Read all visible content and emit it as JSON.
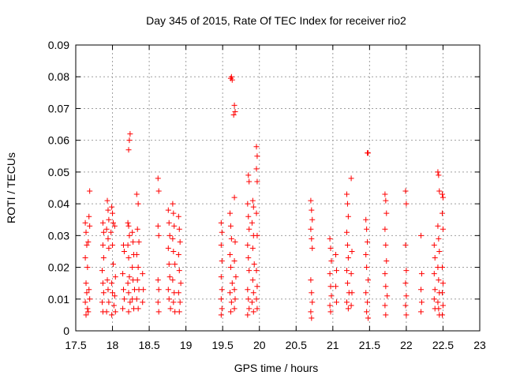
{
  "chart_data": {
    "type": "scatter",
    "title": "Day 345 of 2015, Rate Of TEC Index for receiver rio2",
    "xlabel": "GPS time / hours",
    "ylabel": "ROTI / TECUs",
    "xlim": [
      17.5,
      23
    ],
    "ylim": [
      0,
      0.09
    ],
    "x_ticks": [
      17.5,
      18,
      18.5,
      19,
      19.5,
      20,
      20.5,
      21,
      21.5,
      22,
      22.5,
      23
    ],
    "x_tick_labels": [
      "17.5",
      "18",
      "18.5",
      "19",
      "19.5",
      "20",
      "20.5",
      "21",
      "21.5",
      "22",
      "22.5",
      "23"
    ],
    "y_ticks": [
      0,
      0.01,
      0.02,
      0.03,
      0.04,
      0.05,
      0.06,
      0.07,
      0.08,
      0.09
    ],
    "y_tick_labels": [
      "0",
      "0.01",
      "0.02",
      "0.03",
      "0.04",
      "0.05",
      "0.06",
      "0.07",
      "0.08",
      "0.09"
    ],
    "grid": true,
    "marker": "+",
    "marker_color": "#ff0000",
    "series": [
      {
        "name": "ROTI",
        "points": [
          [
            17.63,
            0.034
          ],
          [
            17.64,
            0.031
          ],
          [
            17.65,
            0.027
          ],
          [
            17.63,
            0.023
          ],
          [
            17.66,
            0.02
          ],
          [
            17.64,
            0.015
          ],
          [
            17.65,
            0.012
          ],
          [
            17.63,
            0.009
          ],
          [
            17.66,
            0.007
          ],
          [
            17.64,
            0.005
          ],
          [
            17.69,
            0.044
          ],
          [
            17.68,
            0.036
          ],
          [
            17.69,
            0.033
          ],
          [
            17.67,
            0.028
          ],
          [
            17.68,
            0.013
          ],
          [
            17.69,
            0.01
          ],
          [
            17.67,
            0.006
          ],
          [
            17.87,
            0.034
          ],
          [
            17.88,
            0.031
          ],
          [
            17.87,
            0.027
          ],
          [
            17.88,
            0.023
          ],
          [
            17.86,
            0.019
          ],
          [
            17.87,
            0.015
          ],
          [
            17.88,
            0.012
          ],
          [
            17.86,
            0.009
          ],
          [
            17.87,
            0.006
          ],
          [
            17.93,
            0.041
          ],
          [
            17.94,
            0.038
          ],
          [
            17.95,
            0.035
          ],
          [
            17.92,
            0.032
          ],
          [
            17.94,
            0.029
          ],
          [
            17.95,
            0.026
          ],
          [
            17.93,
            0.016
          ],
          [
            17.94,
            0.013
          ],
          [
            17.95,
            0.009
          ],
          [
            17.92,
            0.006
          ],
          [
            17.99,
            0.039
          ],
          [
            18.0,
            0.037
          ],
          [
            18.01,
            0.034
          ],
          [
            17.98,
            0.031
          ],
          [
            18.0,
            0.027
          ],
          [
            18.01,
            0.021
          ],
          [
            17.99,
            0.015
          ],
          [
            18.0,
            0.012
          ],
          [
            18.02,
            0.008
          ],
          [
            17.99,
            0.005
          ],
          [
            18.03,
            0.033
          ],
          [
            18.04,
            0.017
          ],
          [
            18.03,
            0.011
          ],
          [
            18.04,
            0.006
          ],
          [
            18.15,
            0.027
          ],
          [
            18.16,
            0.025
          ],
          [
            18.14,
            0.018
          ],
          [
            18.15,
            0.013
          ],
          [
            18.16,
            0.01
          ],
          [
            18.14,
            0.007
          ],
          [
            18.23,
            0.06
          ],
          [
            18.24,
            0.062
          ],
          [
            18.22,
            0.057
          ],
          [
            18.21,
            0.034
          ],
          [
            18.22,
            0.033
          ],
          [
            18.23,
            0.03
          ],
          [
            18.21,
            0.027
          ],
          [
            18.22,
            0.023
          ],
          [
            18.23,
            0.017
          ],
          [
            18.21,
            0.015
          ],
          [
            18.22,
            0.012
          ],
          [
            18.24,
            0.009
          ],
          [
            18.22,
            0.006
          ],
          [
            18.27,
            0.031
          ],
          [
            18.28,
            0.028
          ],
          [
            18.29,
            0.024
          ],
          [
            18.27,
            0.02
          ],
          [
            18.28,
            0.016
          ],
          [
            18.3,
            0.013
          ],
          [
            18.27,
            0.01
          ],
          [
            18.29,
            0.007
          ],
          [
            18.33,
            0.043
          ],
          [
            18.35,
            0.04
          ],
          [
            18.34,
            0.032
          ],
          [
            18.36,
            0.028
          ],
          [
            18.33,
            0.024
          ],
          [
            18.35,
            0.02
          ],
          [
            18.34,
            0.016
          ],
          [
            18.36,
            0.013
          ],
          [
            18.33,
            0.01
          ],
          [
            18.35,
            0.007
          ],
          [
            18.41,
            0.018
          ],
          [
            18.42,
            0.013
          ],
          [
            18.41,
            0.009
          ],
          [
            18.62,
            0.048
          ],
          [
            18.63,
            0.044
          ],
          [
            18.62,
            0.033
          ],
          [
            18.63,
            0.03
          ],
          [
            18.62,
            0.016
          ],
          [
            18.63,
            0.013
          ],
          [
            18.62,
            0.009
          ],
          [
            18.63,
            0.006
          ],
          [
            18.76,
            0.038
          ],
          [
            18.77,
            0.034
          ],
          [
            18.78,
            0.03
          ],
          [
            18.76,
            0.026
          ],
          [
            18.77,
            0.021
          ],
          [
            18.78,
            0.017
          ],
          [
            18.76,
            0.013
          ],
          [
            18.77,
            0.01
          ],
          [
            18.79,
            0.007
          ],
          [
            18.82,
            0.04
          ],
          [
            18.83,
            0.037
          ],
          [
            18.84,
            0.033
          ],
          [
            18.82,
            0.029
          ],
          [
            18.83,
            0.025
          ],
          [
            18.85,
            0.021
          ],
          [
            18.82,
            0.016
          ],
          [
            18.84,
            0.012
          ],
          [
            18.83,
            0.009
          ],
          [
            18.85,
            0.006
          ],
          [
            18.9,
            0.036
          ],
          [
            18.91,
            0.032
          ],
          [
            18.92,
            0.028
          ],
          [
            18.9,
            0.024
          ],
          [
            18.91,
            0.019
          ],
          [
            18.93,
            0.015
          ],
          [
            18.9,
            0.012
          ],
          [
            18.92,
            0.009
          ],
          [
            18.91,
            0.006
          ],
          [
            19.48,
            0.034
          ],
          [
            19.49,
            0.031
          ],
          [
            19.48,
            0.027
          ],
          [
            19.49,
            0.022
          ],
          [
            19.48,
            0.017
          ],
          [
            19.49,
            0.013
          ],
          [
            19.48,
            0.01
          ],
          [
            19.49,
            0.007
          ],
          [
            19.48,
            0.005
          ],
          [
            19.62,
            0.08
          ],
          [
            19.63,
            0.079
          ],
          [
            19.61,
            0.0795
          ],
          [
            19.66,
            0.071
          ],
          [
            19.67,
            0.069
          ],
          [
            19.65,
            0.068
          ],
          [
            19.6,
            0.037
          ],
          [
            19.61,
            0.033
          ],
          [
            19.62,
            0.029
          ],
          [
            19.6,
            0.024
          ],
          [
            19.61,
            0.02
          ],
          [
            19.63,
            0.015
          ],
          [
            19.6,
            0.012
          ],
          [
            19.62,
            0.009
          ],
          [
            19.61,
            0.006
          ],
          [
            19.66,
            0.042
          ],
          [
            19.67,
            0.028
          ],
          [
            19.66,
            0.022
          ],
          [
            19.68,
            0.017
          ],
          [
            19.66,
            0.013
          ],
          [
            19.67,
            0.01
          ],
          [
            19.66,
            0.007
          ],
          [
            19.85,
            0.049
          ],
          [
            19.86,
            0.047
          ],
          [
            19.84,
            0.04
          ],
          [
            19.85,
            0.036
          ],
          [
            19.86,
            0.032
          ],
          [
            19.84,
            0.027
          ],
          [
            19.85,
            0.023
          ],
          [
            19.86,
            0.019
          ],
          [
            19.84,
            0.013
          ],
          [
            19.85,
            0.01
          ],
          [
            19.86,
            0.007
          ],
          [
            19.84,
            0.005
          ],
          [
            19.91,
            0.041
          ],
          [
            19.92,
            0.039
          ],
          [
            19.9,
            0.034
          ],
          [
            19.92,
            0.03
          ],
          [
            19.91,
            0.026
          ],
          [
            19.93,
            0.021
          ],
          [
            19.91,
            0.016
          ],
          [
            19.92,
            0.012
          ],
          [
            19.9,
            0.009
          ],
          [
            19.92,
            0.006
          ],
          [
            19.96,
            0.058
          ],
          [
            19.97,
            0.055
          ],
          [
            19.96,
            0.051
          ],
          [
            19.97,
            0.047
          ],
          [
            19.96,
            0.037
          ],
          [
            19.97,
            0.03
          ],
          [
            19.96,
            0.019
          ],
          [
            19.97,
            0.014
          ],
          [
            19.96,
            0.01
          ],
          [
            19.97,
            0.007
          ],
          [
            20.7,
            0.041
          ],
          [
            20.71,
            0.038
          ],
          [
            20.72,
            0.035
          ],
          [
            20.7,
            0.032
          ],
          [
            20.71,
            0.029
          ],
          [
            20.72,
            0.026
          ],
          [
            20.7,
            0.016
          ],
          [
            20.71,
            0.012
          ],
          [
            20.72,
            0.009
          ],
          [
            20.7,
            0.006
          ],
          [
            20.71,
            0.004
          ],
          [
            20.96,
            0.029
          ],
          [
            20.97,
            0.026
          ],
          [
            20.98,
            0.022
          ],
          [
            20.96,
            0.018
          ],
          [
            20.97,
            0.014
          ],
          [
            20.98,
            0.011
          ],
          [
            20.96,
            0.008
          ],
          [
            20.97,
            0.006
          ],
          [
            21.04,
            0.024
          ],
          [
            21.05,
            0.019
          ],
          [
            21.04,
            0.014
          ],
          [
            21.05,
            0.009
          ],
          [
            21.19,
            0.043
          ],
          [
            21.2,
            0.04
          ],
          [
            21.21,
            0.036
          ],
          [
            21.19,
            0.031
          ],
          [
            21.2,
            0.027
          ],
          [
            21.21,
            0.023
          ],
          [
            21.19,
            0.019
          ],
          [
            21.2,
            0.015
          ],
          [
            21.22,
            0.012
          ],
          [
            21.19,
            0.009
          ],
          [
            21.21,
            0.007
          ],
          [
            21.25,
            0.048
          ],
          [
            21.26,
            0.025
          ],
          [
            21.25,
            0.018
          ],
          [
            21.26,
            0.012
          ],
          [
            21.25,
            0.008
          ],
          [
            21.47,
            0.056
          ],
          [
            21.48,
            0.056
          ],
          [
            21.45,
            0.035
          ],
          [
            21.46,
            0.032
          ],
          [
            21.47,
            0.028
          ],
          [
            21.45,
            0.024
          ],
          [
            21.46,
            0.02
          ],
          [
            21.48,
            0.016
          ],
          [
            21.45,
            0.012
          ],
          [
            21.47,
            0.009
          ],
          [
            21.46,
            0.006
          ],
          [
            21.48,
            0.004
          ],
          [
            21.71,
            0.043
          ],
          [
            21.72,
            0.041
          ],
          [
            21.73,
            0.037
          ],
          [
            21.71,
            0.032
          ],
          [
            21.72,
            0.027
          ],
          [
            21.73,
            0.022
          ],
          [
            21.71,
            0.018
          ],
          [
            21.72,
            0.014
          ],
          [
            21.74,
            0.011
          ],
          [
            21.71,
            0.008
          ],
          [
            21.72,
            0.005
          ],
          [
            21.99,
            0.044
          ],
          [
            22.0,
            0.04
          ],
          [
            21.99,
            0.027
          ],
          [
            22.0,
            0.019
          ],
          [
            21.99,
            0.015
          ],
          [
            22.0,
            0.011
          ],
          [
            21.99,
            0.008
          ],
          [
            22.0,
            0.005
          ],
          [
            22.2,
            0.03
          ],
          [
            22.21,
            0.018
          ],
          [
            22.2,
            0.013
          ],
          [
            22.21,
            0.009
          ],
          [
            22.2,
            0.006
          ],
          [
            22.38,
            0.027
          ],
          [
            22.39,
            0.023
          ],
          [
            22.38,
            0.018
          ],
          [
            22.39,
            0.013
          ],
          [
            22.38,
            0.01
          ],
          [
            22.39,
            0.007
          ],
          [
            22.43,
            0.05
          ],
          [
            22.44,
            0.049
          ],
          [
            22.45,
            0.044
          ],
          [
            22.43,
            0.033
          ],
          [
            22.44,
            0.029
          ],
          [
            22.45,
            0.025
          ],
          [
            22.43,
            0.02
          ],
          [
            22.44,
            0.016
          ],
          [
            22.45,
            0.012
          ],
          [
            22.43,
            0.009
          ],
          [
            22.44,
            0.007
          ],
          [
            22.45,
            0.005
          ],
          [
            22.49,
            0.043
          ],
          [
            22.5,
            0.042
          ],
          [
            22.49,
            0.037
          ],
          [
            22.5,
            0.032
          ],
          [
            22.49,
            0.02
          ],
          [
            22.5,
            0.015
          ],
          [
            22.49,
            0.012
          ],
          [
            22.5,
            0.008
          ],
          [
            22.49,
            0.005
          ]
        ]
      }
    ]
  }
}
